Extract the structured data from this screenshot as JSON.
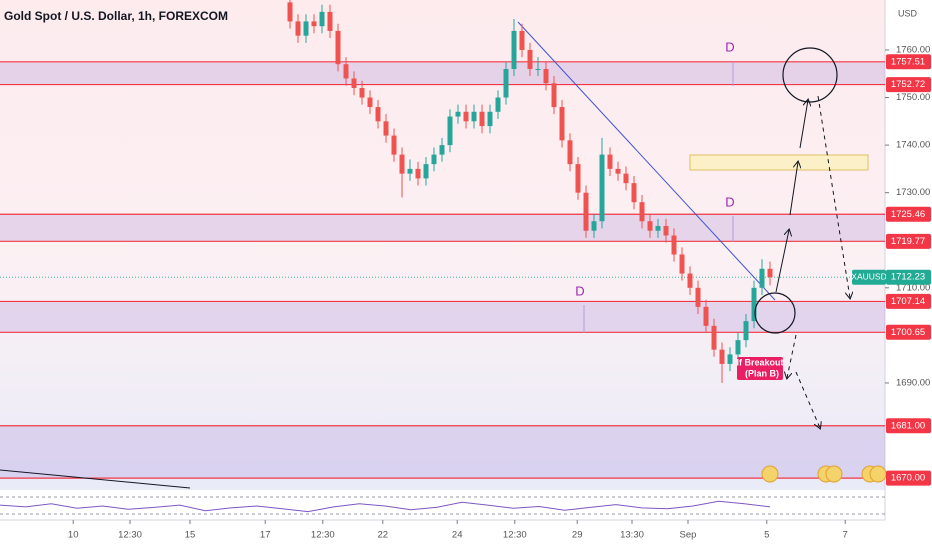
{
  "chart_data": {
    "type": "candlestick",
    "title": "Gold Spot / U.S. Dollar, 1h, FOREXCOM",
    "currency": "USD",
    "symbol": "XAUUSD",
    "last_price": 1712.23,
    "up_color": "#26a69a",
    "down_color": "#ef5350",
    "level_color": "#f23645",
    "last_color": "#22ab94",
    "ylim": [
      1667.5,
      1770.5
    ],
    "yticks": [
      {
        "value": 1760,
        "label": "1760.00"
      },
      {
        "value": 1750,
        "label": "1750.00"
      },
      {
        "value": 1740,
        "label": "1740.00"
      },
      {
        "value": 1730,
        "label": "1730.00"
      },
      {
        "value": 1710,
        "label": "1710.00"
      },
      {
        "value": 1690,
        "label": "1690.00"
      }
    ],
    "xlim": [
      -36.25,
      74.375
    ],
    "xticks": [
      {
        "value": -27.1,
        "label": "10"
      },
      {
        "value": -20,
        "label": "12:30"
      },
      {
        "value": -12.5,
        "label": "15"
      },
      {
        "value": -3.1,
        "label": "17"
      },
      {
        "value": 4.1,
        "label": "12:30"
      },
      {
        "value": 11.6,
        "label": "22"
      },
      {
        "value": 20.9,
        "label": "24"
      },
      {
        "value": 28.1,
        "label": "12:30"
      },
      {
        "value": 35.9,
        "label": "29"
      },
      {
        "value": 42.75,
        "label": "13:30"
      },
      {
        "value": 49.75,
        "label": "Sep"
      },
      {
        "value": 59.6,
        "label": "5"
      },
      {
        "value": 69.4,
        "label": "7"
      }
    ],
    "levels": [
      1757.51,
      1752.72,
      1725.46,
      1719.77,
      1707.14,
      1700.65,
      {
        "value": 1681,
        "label": "1681.00"
      },
      {
        "value": 1670,
        "label": "1670.00"
      }
    ],
    "annotations": [
      "D",
      "D",
      "D"
    ],
    "callout": [
      "If Breakout",
      "(Plan B)"
    ],
    "candles": [
      [
        1770,
        1771.5,
        1764.5,
        1766
      ],
      [
        1766,
        1767.5,
        1761.5,
        1763
      ],
      [
        1763,
        1767.5,
        1761.5,
        1766
      ],
      [
        1766,
        1767.5,
        1763.5,
        1765
      ],
      [
        1765,
        1769.5,
        1763.5,
        1768
      ],
      [
        1768,
        1769.5,
        1762.5,
        1764
      ],
      [
        1764,
        1765.5,
        1755.5,
        1757
      ],
      [
        1757,
        1758.5,
        1752.5,
        1754
      ],
      [
        1754,
        1755.5,
        1750.5,
        1752
      ],
      [
        1752,
        1753.5,
        1748.5,
        1750
      ],
      [
        1750,
        1751.5,
        1746.5,
        1748
      ],
      [
        1748,
        1749.5,
        1743.5,
        1745
      ],
      [
        1745,
        1746.5,
        1740.5,
        1742
      ],
      [
        1742,
        1743.5,
        1736.5,
        1738
      ],
      [
        1738,
        1739.5,
        1729,
        1734
      ],
      [
        1734,
        1737,
        1732.5,
        1735
      ],
      [
        1735,
        1736.5,
        1731.5,
        1733
      ],
      [
        1733,
        1737.5,
        1731.5,
        1736
      ],
      [
        1736,
        1739.5,
        1734.5,
        1738
      ],
      [
        1738,
        1741.5,
        1736.5,
        1740
      ],
      [
        1740,
        1747.5,
        1738.5,
        1746
      ],
      [
        1746,
        1748.5,
        1744.5,
        1747
      ],
      [
        1747,
        1748.5,
        1743.5,
        1745
      ],
      [
        1745,
        1748.5,
        1743.5,
        1747
      ],
      [
        1747,
        1748.5,
        1742.5,
        1744
      ],
      [
        1744,
        1748.5,
        1742.5,
        1747
      ],
      [
        1747,
        1751.5,
        1745.5,
        1750
      ],
      [
        1750,
        1757.5,
        1748.5,
        1756
      ],
      [
        1756,
        1766.5,
        1754.5,
        1764
      ],
      [
        1764,
        1765.5,
        1758.5,
        1760
      ],
      [
        1760,
        1761.5,
        1754.5,
        1756
      ],
      [
        1756,
        1758.5,
        1754.5,
        1756
      ],
      [
        1756,
        1757.5,
        1751.5,
        1753
      ],
      [
        1753,
        1754.5,
        1746.5,
        1748
      ],
      [
        1748,
        1749.5,
        1739.5,
        1741
      ],
      [
        1741,
        1742.5,
        1734.5,
        1736
      ],
      [
        1736,
        1737.5,
        1728.5,
        1730
      ],
      [
        1730,
        1731.5,
        1720.5,
        1722
      ],
      [
        1722,
        1725.5,
        1720.5,
        1724
      ],
      [
        1724,
        1741.5,
        1722.5,
        1738
      ],
      [
        1738,
        1739.5,
        1733.5,
        1735
      ],
      [
        1735,
        1736.5,
        1732.5,
        1734
      ],
      [
        1734,
        1735.5,
        1730.5,
        1732
      ],
      [
        1732,
        1733.5,
        1726.5,
        1728
      ],
      [
        1728,
        1729.5,
        1722.5,
        1724
      ],
      [
        1724,
        1725.5,
        1720.5,
        1722
      ],
      [
        1722,
        1724.5,
        1720.5,
        1723
      ],
      [
        1723,
        1724.5,
        1719.5,
        1721
      ],
      [
        1721,
        1722.5,
        1715.5,
        1717
      ],
      [
        1717,
        1718.5,
        1711.5,
        1713
      ],
      [
        1713,
        1714.5,
        1708.5,
        1710
      ],
      [
        1710,
        1711.5,
        1704.5,
        1706
      ],
      [
        1706,
        1707.5,
        1700.5,
        1702
      ],
      [
        1702,
        1703.5,
        1695.5,
        1697
      ],
      [
        1697,
        1698.5,
        1690,
        1694
      ],
      [
        1694,
        1697.5,
        1692.5,
        1696
      ],
      [
        1696,
        1700.5,
        1694.5,
        1699
      ],
      [
        1699,
        1704.5,
        1697.5,
        1703
      ],
      [
        1703,
        1711.5,
        1701.5,
        1710
      ],
      [
        1710,
        1716,
        1708.5,
        1714
      ],
      [
        1714,
        1715.5,
        1710.5,
        1712.23
      ]
    ],
    "rsi_lim": [
      20,
      80
    ],
    "rsi": [
      52,
      48,
      55,
      45,
      50,
      43,
      47,
      52,
      40,
      46,
      50,
      44,
      38,
      48,
      55,
      50,
      42,
      47,
      58,
      52,
      45,
      49,
      41,
      47,
      53,
      46,
      44,
      50,
      60,
      55,
      48
    ]
  }
}
